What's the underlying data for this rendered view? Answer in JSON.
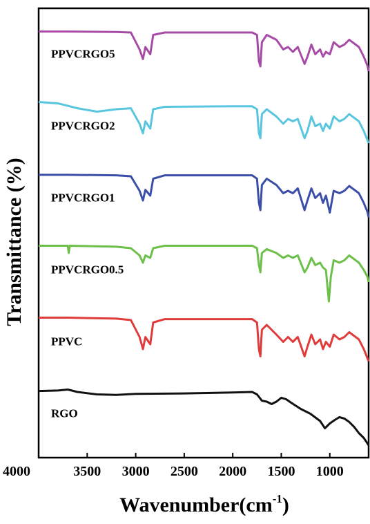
{
  "chart_data": {
    "type": "line",
    "title": "",
    "xlabel": "Wavenumber(cm",
    "xlabel_superscript": "-1",
    "xlabel_close": ")",
    "ylabel": "Transmittance (%)",
    "xlim": [
      4000,
      600
    ],
    "x_reversed": true,
    "x_ticks": [
      4000,
      3500,
      3000,
      2500,
      2000,
      1500,
      1000
    ],
    "y_ticks_shown": false,
    "grid": false,
    "legend": "inline labels",
    "series": [
      {
        "name": "PPVCRGO5",
        "color": "#a64ca6",
        "offset": 5,
        "points": [
          [
            4000,
            0.92
          ],
          [
            3700,
            0.92
          ],
          [
            3200,
            0.91
          ],
          [
            3050,
            0.9
          ],
          [
            2960,
            0.55
          ],
          [
            2925,
            0.35
          ],
          [
            2900,
            0.6
          ],
          [
            2850,
            0.45
          ],
          [
            2820,
            0.85
          ],
          [
            2700,
            0.9
          ],
          [
            2000,
            0.9
          ],
          [
            1800,
            0.9
          ],
          [
            1750,
            0.85
          ],
          [
            1730,
            0.3
          ],
          [
            1715,
            0.2
          ],
          [
            1700,
            0.7
          ],
          [
            1650,
            0.85
          ],
          [
            1550,
            0.75
          ],
          [
            1480,
            0.55
          ],
          [
            1430,
            0.6
          ],
          [
            1380,
            0.5
          ],
          [
            1330,
            0.6
          ],
          [
            1260,
            0.25
          ],
          [
            1230,
            0.4
          ],
          [
            1190,
            0.65
          ],
          [
            1150,
            0.45
          ],
          [
            1100,
            0.55
          ],
          [
            1070,
            0.4
          ],
          [
            1040,
            0.5
          ],
          [
            1000,
            0.45
          ],
          [
            960,
            0.7
          ],
          [
            900,
            0.6
          ],
          [
            850,
            0.65
          ],
          [
            800,
            0.75
          ],
          [
            700,
            0.6
          ],
          [
            650,
            0.4
          ],
          [
            610,
            0.2
          ],
          [
            600,
            0.1
          ]
        ]
      },
      {
        "name": "PPVCRGO2",
        "color": "#58c6de",
        "offset": 4,
        "points": [
          [
            4000,
            0.95
          ],
          [
            3800,
            0.92
          ],
          [
            3600,
            0.82
          ],
          [
            3400,
            0.75
          ],
          [
            3200,
            0.8
          ],
          [
            3050,
            0.82
          ],
          [
            2960,
            0.5
          ],
          [
            2925,
            0.3
          ],
          [
            2900,
            0.55
          ],
          [
            2850,
            0.4
          ],
          [
            2820,
            0.8
          ],
          [
            2700,
            0.85
          ],
          [
            2000,
            0.86
          ],
          [
            1800,
            0.86
          ],
          [
            1750,
            0.8
          ],
          [
            1730,
            0.3
          ],
          [
            1715,
            0.2
          ],
          [
            1700,
            0.7
          ],
          [
            1650,
            0.8
          ],
          [
            1550,
            0.65
          ],
          [
            1480,
            0.5
          ],
          [
            1430,
            0.6
          ],
          [
            1380,
            0.55
          ],
          [
            1330,
            0.6
          ],
          [
            1260,
            0.2
          ],
          [
            1230,
            0.35
          ],
          [
            1190,
            0.65
          ],
          [
            1150,
            0.45
          ],
          [
            1100,
            0.5
          ],
          [
            1070,
            0.35
          ],
          [
            1040,
            0.5
          ],
          [
            1000,
            0.4
          ],
          [
            960,
            0.65
          ],
          [
            900,
            0.55
          ],
          [
            850,
            0.6
          ],
          [
            800,
            0.7
          ],
          [
            700,
            0.55
          ],
          [
            650,
            0.35
          ],
          [
            610,
            0.15
          ],
          [
            600,
            0.1
          ]
        ]
      },
      {
        "name": "PPVCRGO1",
        "color": "#3b4fa8",
        "offset": 3,
        "points": [
          [
            4000,
            0.93
          ],
          [
            3700,
            0.93
          ],
          [
            3200,
            0.92
          ],
          [
            3050,
            0.9
          ],
          [
            2960,
            0.6
          ],
          [
            2925,
            0.4
          ],
          [
            2900,
            0.62
          ],
          [
            2850,
            0.5
          ],
          [
            2820,
            0.85
          ],
          [
            2700,
            0.92
          ],
          [
            2000,
            0.92
          ],
          [
            1800,
            0.92
          ],
          [
            1750,
            0.85
          ],
          [
            1730,
            0.35
          ],
          [
            1715,
            0.2
          ],
          [
            1700,
            0.72
          ],
          [
            1650,
            0.85
          ],
          [
            1550,
            0.72
          ],
          [
            1480,
            0.55
          ],
          [
            1430,
            0.6
          ],
          [
            1380,
            0.55
          ],
          [
            1330,
            0.65
          ],
          [
            1260,
            0.2
          ],
          [
            1230,
            0.4
          ],
          [
            1190,
            0.65
          ],
          [
            1150,
            0.45
          ],
          [
            1100,
            0.55
          ],
          [
            1070,
            0.35
          ],
          [
            1040,
            0.5
          ],
          [
            1000,
            0.15
          ],
          [
            960,
            0.6
          ],
          [
            900,
            0.55
          ],
          [
            850,
            0.6
          ],
          [
            800,
            0.7
          ],
          [
            700,
            0.55
          ],
          [
            650,
            0.35
          ],
          [
            610,
            0.15
          ],
          [
            600,
            0.05
          ]
        ]
      },
      {
        "name": "PPVCRGO0.5",
        "color": "#6cc04a",
        "offset": 2,
        "points": [
          [
            4000,
            0.95
          ],
          [
            3700,
            0.95
          ],
          [
            3690,
            0.8
          ],
          [
            3680,
            0.95
          ],
          [
            3200,
            0.93
          ],
          [
            3050,
            0.9
          ],
          [
            2960,
            0.75
          ],
          [
            2925,
            0.6
          ],
          [
            2900,
            0.75
          ],
          [
            2850,
            0.7
          ],
          [
            2820,
            0.9
          ],
          [
            2700,
            0.95
          ],
          [
            2000,
            0.95
          ],
          [
            1800,
            0.95
          ],
          [
            1750,
            0.9
          ],
          [
            1730,
            0.55
          ],
          [
            1715,
            0.4
          ],
          [
            1700,
            0.8
          ],
          [
            1650,
            0.88
          ],
          [
            1550,
            0.8
          ],
          [
            1480,
            0.7
          ],
          [
            1430,
            0.75
          ],
          [
            1380,
            0.7
          ],
          [
            1330,
            0.75
          ],
          [
            1260,
            0.4
          ],
          [
            1230,
            0.5
          ],
          [
            1190,
            0.7
          ],
          [
            1150,
            0.55
          ],
          [
            1100,
            0.6
          ],
          [
            1070,
            0.5
          ],
          [
            1040,
            0.45
          ],
          [
            1010,
            -0.2
          ],
          [
            990,
            0.3
          ],
          [
            960,
            0.65
          ],
          [
            900,
            0.6
          ],
          [
            850,
            0.65
          ],
          [
            800,
            0.75
          ],
          [
            700,
            0.6
          ],
          [
            650,
            0.45
          ],
          [
            610,
            0.3
          ],
          [
            600,
            0.2
          ]
        ]
      },
      {
        "name": "PPVC",
        "color": "#e03b3b",
        "offset": 1,
        "points": [
          [
            4000,
            0.95
          ],
          [
            3700,
            0.95
          ],
          [
            3200,
            0.93
          ],
          [
            3050,
            0.9
          ],
          [
            2960,
            0.55
          ],
          [
            2925,
            0.3
          ],
          [
            2900,
            0.55
          ],
          [
            2850,
            0.4
          ],
          [
            2820,
            0.85
          ],
          [
            2700,
            0.92
          ],
          [
            2000,
            0.92
          ],
          [
            1800,
            0.92
          ],
          [
            1750,
            0.85
          ],
          [
            1730,
            0.3
          ],
          [
            1715,
            0.15
          ],
          [
            1700,
            0.7
          ],
          [
            1650,
            0.8
          ],
          [
            1550,
            0.6
          ],
          [
            1480,
            0.45
          ],
          [
            1430,
            0.55
          ],
          [
            1380,
            0.45
          ],
          [
            1330,
            0.55
          ],
          [
            1260,
            0.15
          ],
          [
            1230,
            0.35
          ],
          [
            1190,
            0.6
          ],
          [
            1150,
            0.4
          ],
          [
            1100,
            0.5
          ],
          [
            1070,
            0.3
          ],
          [
            1040,
            0.45
          ],
          [
            1000,
            0.35
          ],
          [
            960,
            0.6
          ],
          [
            900,
            0.5
          ],
          [
            850,
            0.55
          ],
          [
            800,
            0.65
          ],
          [
            700,
            0.5
          ],
          [
            650,
            0.3
          ],
          [
            610,
            0.1
          ],
          [
            600,
            0.05
          ]
        ]
      },
      {
        "name": "RGO",
        "color": "#111111",
        "offset": 0,
        "points": [
          [
            4000,
            0.92
          ],
          [
            3800,
            0.93
          ],
          [
            3700,
            0.95
          ],
          [
            3600,
            0.9
          ],
          [
            3400,
            0.85
          ],
          [
            3200,
            0.84
          ],
          [
            3000,
            0.86
          ],
          [
            2500,
            0.87
          ],
          [
            2000,
            0.89
          ],
          [
            1800,
            0.9
          ],
          [
            1750,
            0.85
          ],
          [
            1700,
            0.72
          ],
          [
            1650,
            0.7
          ],
          [
            1600,
            0.65
          ],
          [
            1550,
            0.7
          ],
          [
            1500,
            0.78
          ],
          [
            1450,
            0.75
          ],
          [
            1400,
            0.68
          ],
          [
            1300,
            0.55
          ],
          [
            1200,
            0.45
          ],
          [
            1100,
            0.3
          ],
          [
            1050,
            0.15
          ],
          [
            1000,
            0.25
          ],
          [
            950,
            0.32
          ],
          [
            900,
            0.38
          ],
          [
            850,
            0.35
          ],
          [
            800,
            0.28
          ],
          [
            750,
            0.18
          ],
          [
            700,
            0.05
          ],
          [
            650,
            -0.05
          ],
          [
            600,
            -0.2
          ]
        ]
      }
    ]
  }
}
